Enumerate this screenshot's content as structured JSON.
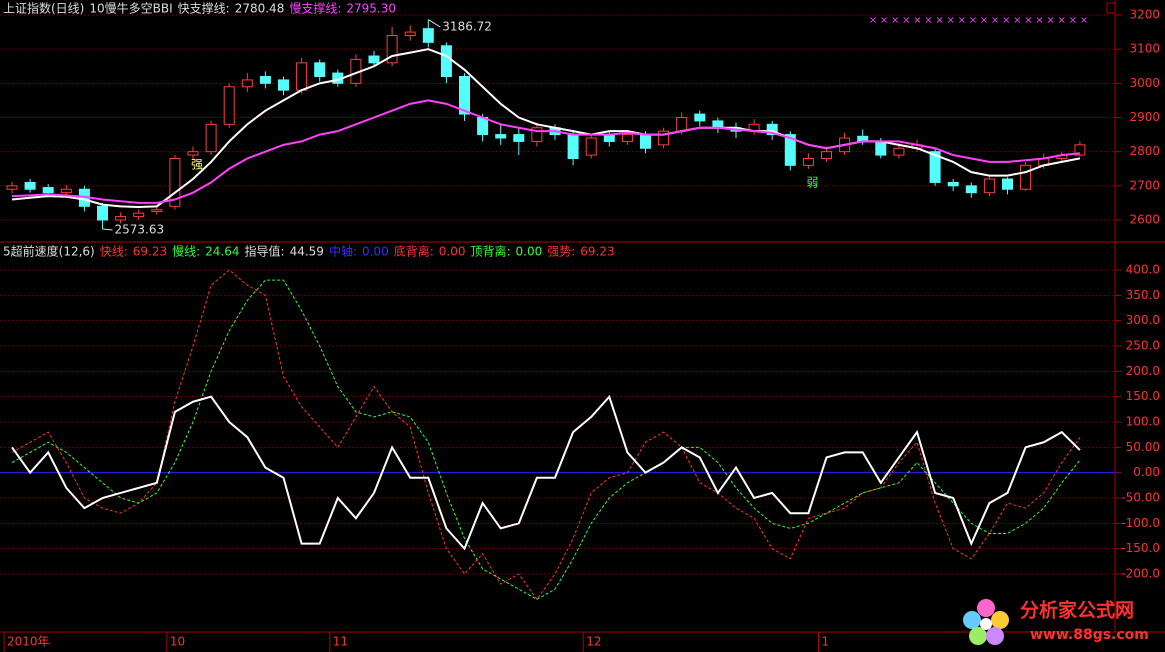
{
  "chart_data": [
    {
      "type": "candlestick",
      "title": "上证指数(日线)",
      "subtitle": "10慢牛多空BBI",
      "categories": [
        "2010年",
        null,
        null,
        null,
        null,
        null,
        null,
        null,
        null,
        "10",
        null,
        null,
        null,
        null,
        null,
        null,
        null,
        null,
        "11",
        null,
        null,
        null,
        null,
        null,
        null,
        null,
        null,
        null,
        null,
        null,
        null,
        null,
        "12",
        null,
        null,
        null,
        null,
        null,
        null,
        null,
        null,
        null,
        null,
        null,
        null,
        "1",
        null,
        null,
        null,
        null,
        null,
        null,
        null,
        null,
        null,
        null,
        null,
        null,
        null,
        null
      ],
      "open": [
        2690,
        2710,
        2695,
        2680,
        2690,
        2640,
        2600,
        2610,
        2625,
        2640,
        2790,
        2800,
        2880,
        2990,
        3020,
        3010,
        2980,
        3060,
        3030,
        3000,
        3080,
        3060,
        3140,
        3160,
        3110,
        3020,
        2900,
        2850,
        2850,
        2830,
        2870,
        2850,
        2790,
        2850,
        2830,
        2850,
        2820,
        2860,
        2910,
        2890,
        2870,
        2860,
        2880,
        2850,
        2760,
        2780,
        2800,
        2845,
        2830,
        2790,
        2810,
        2800,
        2710,
        2700,
        2680,
        2720,
        2690,
        2760,
        2780,
        2790
      ],
      "high": [
        2712,
        2720,
        2705,
        2702,
        2700,
        2650,
        2622,
        2630,
        2645,
        2790,
        2815,
        2890,
        3000,
        3030,
        3035,
        3020,
        3075,
        3070,
        3040,
        3085,
        3095,
        3165,
        3170,
        3186.72,
        3120,
        3030,
        2910,
        2880,
        2870,
        2885,
        2880,
        2860,
        2850,
        2860,
        2862,
        2860,
        2870,
        2915,
        2920,
        2900,
        2885,
        2895,
        2890,
        2860,
        2795,
        2815,
        2855,
        2865,
        2840,
        2825,
        2835,
        2810,
        2720,
        2710,
        2730,
        2725,
        2770,
        2795,
        2800,
        2830
      ],
      "low": [
        2678,
        2680,
        2668,
        2670,
        2625,
        2573.63,
        2590,
        2600,
        2615,
        2630,
        2775,
        2790,
        2870,
        2975,
        2985,
        2965,
        2970,
        3005,
        2990,
        2990,
        3050,
        3050,
        3125,
        3105,
        3000,
        2890,
        2830,
        2820,
        2790,
        2815,
        2835,
        2760,
        2780,
        2815,
        2820,
        2795,
        2810,
        2850,
        2875,
        2855,
        2840,
        2850,
        2835,
        2745,
        2750,
        2770,
        2790,
        2820,
        2780,
        2780,
        2800,
        2700,
        2685,
        2665,
        2670,
        2675,
        2685,
        2750,
        2770,
        2785
      ],
      "close": [
        2700,
        2690,
        2680,
        2690,
        2640,
        2600,
        2610,
        2620,
        2630,
        2780,
        2800,
        2880,
        2990,
        3010,
        3000,
        2980,
        3060,
        3020,
        3000,
        3070,
        3060,
        3140,
        3150,
        3120,
        3020,
        2910,
        2850,
        2840,
        2830,
        2870,
        2850,
        2780,
        2840,
        2830,
        2850,
        2810,
        2860,
        2900,
        2890,
        2870,
        2860,
        2880,
        2850,
        2760,
        2780,
        2800,
        2840,
        2830,
        2790,
        2810,
        2820,
        2710,
        2700,
        2680,
        2720,
        2690,
        2760,
        2780,
        2790,
        2820
      ],
      "up_color": "#ff3c3c",
      "down_color": "#54fcfc",
      "series": [
        {
          "name": "快支撑线:",
          "color": "#ffffff",
          "current_label": "2780.48",
          "values": [
            2660,
            2665,
            2670,
            2668,
            2660,
            2645,
            2640,
            2638,
            2640,
            2680,
            2720,
            2770,
            2830,
            2880,
            2920,
            2950,
            2980,
            3000,
            3010,
            3030,
            3050,
            3080,
            3090,
            3100,
            3080,
            3040,
            2990,
            2940,
            2900,
            2880,
            2870,
            2860,
            2850,
            2860,
            2860,
            2850,
            2850,
            2860,
            2870,
            2870,
            2870,
            2860,
            2860,
            2840,
            2820,
            2810,
            2820,
            2830,
            2830,
            2820,
            2810,
            2790,
            2770,
            2740,
            2730,
            2730,
            2740,
            2760,
            2770,
            2780.48
          ]
        },
        {
          "name": "慢支撑线:",
          "color": "#ff40ff",
          "current_label": "2795.30",
          "values": [
            2670,
            2672,
            2675,
            2672,
            2668,
            2660,
            2655,
            2650,
            2650,
            2660,
            2680,
            2710,
            2750,
            2780,
            2800,
            2820,
            2830,
            2850,
            2860,
            2880,
            2900,
            2920,
            2940,
            2950,
            2940,
            2920,
            2900,
            2880,
            2870,
            2860,
            2860,
            2850,
            2850,
            2850,
            2855,
            2850,
            2850,
            2860,
            2870,
            2870,
            2865,
            2860,
            2855,
            2840,
            2820,
            2810,
            2820,
            2830,
            2830,
            2830,
            2820,
            2810,
            2790,
            2780,
            2770,
            2770,
            2775,
            2780,
            2790,
            2795.3
          ]
        }
      ],
      "signals": [
        {
          "text": "强",
          "index": 10,
          "color": "#ffff80"
        },
        {
          "text": "弱",
          "index": 44,
          "color": "#40ff40"
        }
      ],
      "ylim": [
        2550,
        3230
      ],
      "yticks": [
        2600,
        2700,
        2800,
        2900,
        3000,
        3100,
        3200
      ],
      "grid": true
    },
    {
      "type": "line",
      "title": "5超前速度(12,6)",
      "series": [
        {
          "name": "快线:",
          "color": "#ff3030",
          "dash": true,
          "values": [
            40,
            60,
            80,
            20,
            -50,
            -70,
            -80,
            -60,
            -20,
            140,
            250,
            370,
            400,
            370,
            350,
            190,
            130,
            90,
            50,
            110,
            170,
            120,
            90,
            -40,
            -150,
            -200,
            -160,
            -220,
            -200,
            -250,
            -200,
            -130,
            -40,
            -10,
            0,
            60,
            80,
            50,
            -20,
            -40,
            -70,
            -90,
            -150,
            -170,
            -90,
            -80,
            -70,
            -40,
            -30,
            20,
            60,
            -60,
            -150,
            -170,
            -120,
            -60,
            -70,
            -40,
            20,
            69.23
          ]
        },
        {
          "name": "慢线:",
          "color": "#30ff30",
          "dash": true,
          "values": [
            20,
            40,
            60,
            40,
            10,
            -20,
            -50,
            -60,
            -40,
            20,
            100,
            200,
            280,
            340,
            380,
            380,
            320,
            250,
            170,
            120,
            110,
            120,
            110,
            60,
            -40,
            -130,
            -190,
            -210,
            -230,
            -250,
            -230,
            -170,
            -100,
            -50,
            -20,
            0,
            20,
            50,
            50,
            20,
            -30,
            -70,
            -100,
            -110,
            -100,
            -80,
            -60,
            -40,
            -30,
            -20,
            20,
            -20,
            -60,
            -100,
            -120,
            -120,
            -100,
            -70,
            -20,
            24.64
          ]
        },
        {
          "name": "指导值:",
          "color": "#ffffff",
          "dash": false,
          "values": [
            50,
            0,
            40,
            -30,
            -70,
            -50,
            -40,
            -30,
            -20,
            120,
            140,
            150,
            100,
            70,
            10,
            -10,
            -140,
            -140,
            -50,
            -90,
            -40,
            50,
            -10,
            -10,
            -110,
            -150,
            -60,
            -110,
            -100,
            -10,
            -10,
            80,
            110,
            150,
            40,
            0,
            20,
            50,
            30,
            -40,
            10,
            -50,
            -40,
            -80,
            -80,
            30,
            40,
            40,
            -20,
            30,
            80,
            -40,
            -50,
            -140,
            -60,
            -40,
            50,
            60,
            80,
            44.59
          ]
        }
      ],
      "indicators": [
        {
          "name": "中轴:",
          "label": "0.00",
          "color": "#3030ff"
        },
        {
          "name": "底背离:",
          "label": "0.00",
          "color": "#ff3030"
        },
        {
          "name": "顶背离:",
          "label": "0.00",
          "color": "#30ff30"
        },
        {
          "name": "强势:",
          "label": "69.23",
          "color": "#ff3030"
        }
      ],
      "axis_line": {
        "value": 0,
        "color": "#2020ff"
      },
      "ylim": [
        -290,
        440
      ],
      "yticks": [
        {
          "value": 400,
          "label": "400.0"
        },
        {
          "value": 350,
          "label": "350.0"
        },
        {
          "value": 300,
          "label": "300.0"
        },
        {
          "value": 250,
          "label": "250.0"
        },
        {
          "value": 200,
          "label": "200.0"
        },
        {
          "value": 150,
          "label": "150.0"
        },
        {
          "value": 100,
          "label": "100.0"
        },
        {
          "value": 50,
          "label": "50.00"
        },
        {
          "value": 0,
          "label": "0.00"
        },
        {
          "value": -50,
          "label": "-50.00"
        },
        {
          "value": -100,
          "label": "-100.0"
        },
        {
          "value": -150,
          "label": "-150.0"
        },
        {
          "value": -200,
          "label": "-200.0"
        }
      ],
      "grid": true
    }
  ],
  "watermark": {
    "title": "分析家公式网",
    "url": "www.88gs.com"
  }
}
